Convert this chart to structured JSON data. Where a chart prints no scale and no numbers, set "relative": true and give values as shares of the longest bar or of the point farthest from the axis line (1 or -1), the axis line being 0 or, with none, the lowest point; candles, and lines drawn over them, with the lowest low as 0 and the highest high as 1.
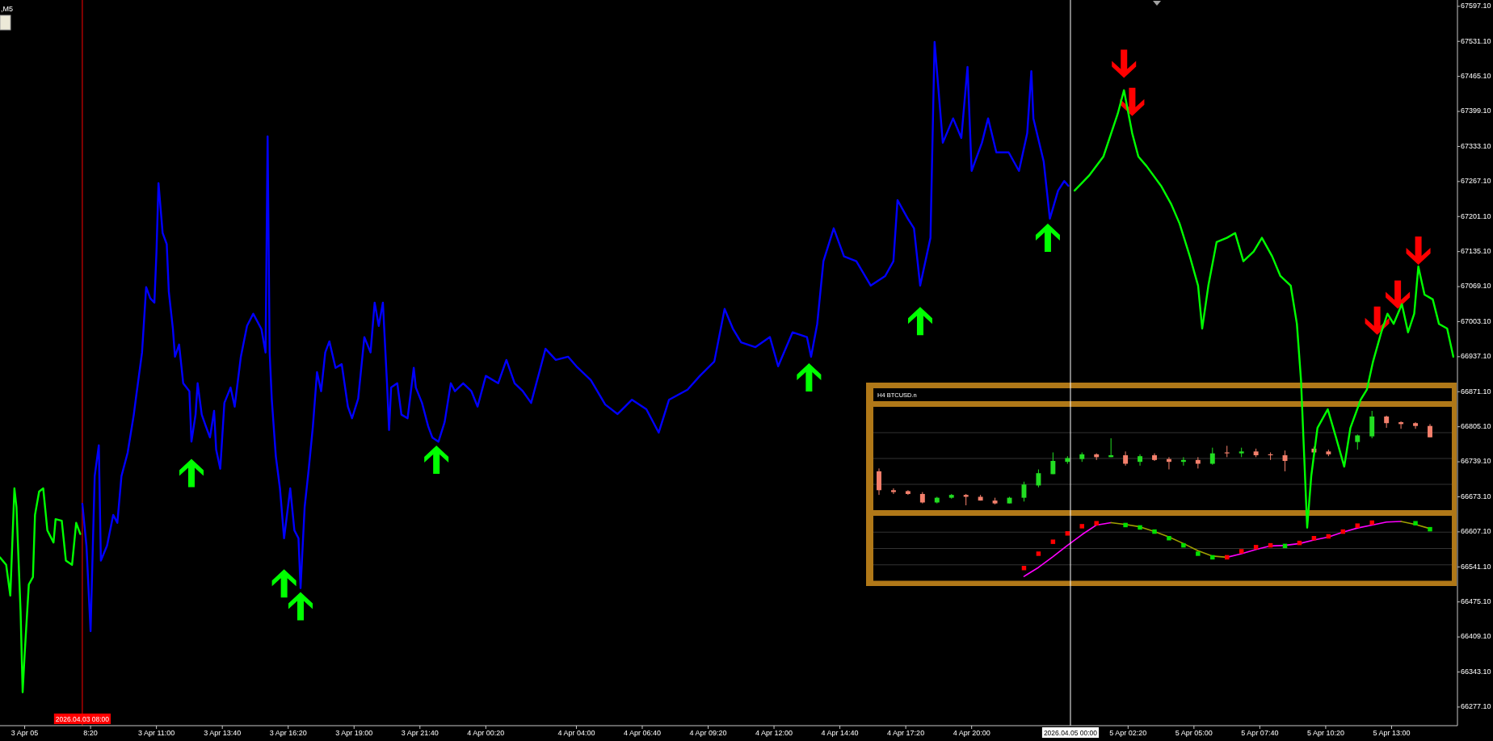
{
  "chart_data": [
    {
      "type": "line",
      "title": ",M5",
      "xlim": [
        "2026-04-03T04:40",
        "2026-04-05T15:40"
      ],
      "ylim": [
        66242,
        67609
      ],
      "xticks": [
        {
          "value": "2026-04-03T05:40",
          "label": "3 Apr 05"
        },
        {
          "value": "2026-04-03T08:20",
          "label": "8:20"
        },
        {
          "value": "2026-04-03T11:00",
          "label": "3 Apr 11:00"
        },
        {
          "value": "2026-04-03T13:40",
          "label": "3 Apr 13:40"
        },
        {
          "value": "2026-04-03T16:20",
          "label": "3 Apr 16:20"
        },
        {
          "value": "2026-04-03T19:00",
          "label": "3 Apr 19:00"
        },
        {
          "value": "2026-04-03T21:40",
          "label": "3 Apr 21:40"
        },
        {
          "value": "2026-04-04T00:20",
          "label": "4 Apr 00:20"
        },
        {
          "value": "2026-04-04T04:00",
          "label": "4 Apr 04:00"
        },
        {
          "value": "2026-04-04T06:40",
          "label": "4 Apr 06:40"
        },
        {
          "value": "2026-04-04T09:20",
          "label": "4 Apr 09:20"
        },
        {
          "value": "2026-04-04T12:00",
          "label": "4 Apr 12:00"
        },
        {
          "value": "2026-04-04T14:40",
          "label": "4 Apr 14:40"
        },
        {
          "value": "2026-04-04T17:20",
          "label": "4 Apr 17:20"
        },
        {
          "value": "2026-04-04T20:00",
          "label": "4 Apr 20:00"
        },
        {
          "value": "2026-04-05T02:20",
          "label": "5 Apr 02:20"
        },
        {
          "value": "2026-04-05T05:00",
          "label": "5 Apr 05:00"
        },
        {
          "value": "2026-04-05T07:40",
          "label": "5 Apr 07:40"
        },
        {
          "value": "2026-04-05T10:20",
          "label": "5 Apr 10:20"
        },
        {
          "value": "2026-04-05T13:00",
          "label": "5 Apr 13:00"
        }
      ],
      "yticks": [
        {
          "value": 66277.1,
          "label": "66277.10"
        },
        {
          "value": 66343.1,
          "label": "66343.10"
        },
        {
          "value": 66409.1,
          "label": "66409.10"
        },
        {
          "value": 66475.1,
          "label": "66475.10"
        },
        {
          "value": 66541.1,
          "label": "66541.10"
        },
        {
          "value": 66607.1,
          "label": "66607.10"
        },
        {
          "value": 66673.1,
          "label": "66673.10"
        },
        {
          "value": 66739.1,
          "label": "66739.10"
        },
        {
          "value": 66805.1,
          "label": "66805.10"
        },
        {
          "value": 66871.1,
          "label": "66871.10"
        },
        {
          "value": 66937.1,
          "label": "66937.10"
        },
        {
          "value": 67003.1,
          "label": "67003.10"
        },
        {
          "value": 67069.1,
          "label": "67069.10"
        },
        {
          "value": 67135.1,
          "label": "67135.10"
        },
        {
          "value": 67201.1,
          "label": "67201.10"
        },
        {
          "value": 67267.1,
          "label": "67267.10"
        },
        {
          "value": 67333.1,
          "label": "67333.10"
        },
        {
          "value": 67399.1,
          "label": "67399.10"
        },
        {
          "value": 67465.1,
          "label": "67465.10"
        },
        {
          "value": 67531.1,
          "label": "67531.10"
        },
        {
          "value": 67597.1,
          "label": "67597.10"
        }
      ],
      "ref_lines": [
        {
          "axis": "x",
          "value": "2026-04-03T08:00",
          "label": "2026.04.03 08:00",
          "color": "#ff0000"
        },
        {
          "axis": "x",
          "value": "2026-04-05T00:00",
          "label": "2026.04.05 00:00",
          "color": "#ffffff"
        }
      ],
      "series": [
        {
          "type": "line",
          "color": "#00ff00",
          "x": [
            "2026-04-03T04:40",
            "2026-04-03T04:55",
            "2026-04-03T05:05",
            "2026-04-03T05:15",
            "2026-04-03T05:20",
            "2026-04-03T05:30",
            "2026-04-03T05:35",
            "2026-04-03T05:40",
            "2026-04-03T05:50",
            "2026-04-03T06:00",
            "2026-04-03T06:05",
            "2026-04-03T06:15",
            "2026-04-03T06:25",
            "2026-04-03T06:35",
            "2026-04-03T06:50",
            "2026-04-03T06:55",
            "2026-04-03T07:10",
            "2026-04-03T07:20",
            "2026-04-03T07:35",
            "2026-04-03T07:45",
            "2026-04-03T07:55",
            "2026-04-04T12:00",
            "2026-04-05T00:10",
            "2026-04-05T00:45",
            "2026-04-05T01:20",
            "2026-04-05T01:55",
            "2026-04-05T02:10",
            "2026-04-05T02:30",
            "2026-04-05T02:45",
            "2026-04-05T03:05",
            "2026-04-05T03:40",
            "2026-04-05T04:05",
            "2026-04-05T04:25",
            "2026-04-05T04:50",
            "2026-04-05T05:10",
            "2026-04-05T05:20",
            "2026-04-05T05:35",
            "2026-04-05T05:55",
            "2026-04-05T06:20",
            "2026-04-05T06:40",
            "2026-04-05T07:00",
            "2026-04-05T07:25",
            "2026-04-05T07:45",
            "2026-04-05T08:10",
            "2026-04-05T08:30",
            "2026-04-05T08:55",
            "2026-04-05T09:10",
            "2026-04-05T09:20",
            "2026-04-05T09:35",
            "2026-04-05T09:45",
            "2026-04-05T10:00",
            "2026-04-05T10:25",
            "2026-04-05T10:45",
            "2026-04-05T11:05",
            "2026-04-05T11:20",
            "2026-04-05T11:45",
            "2026-04-05T12:00",
            "2026-04-05T12:15",
            "2026-04-05T12:35",
            "2026-04-05T12:50",
            "2026-04-05T13:05",
            "2026-04-05T13:25",
            "2026-04-05T13:40",
            "2026-04-05T13:55",
            "2026-04-05T14:05",
            "2026-04-05T14:20",
            "2026-04-05T14:40",
            "2026-04-05T14:55",
            "2026-04-05T15:15",
            "2026-04-05T15:30"
          ],
          "values": [
            66559,
            66545,
            66487,
            66689,
            66654,
            66457,
            66305,
            66378,
            66508,
            66522,
            66639,
            66683,
            66689,
            66610,
            66587,
            66631,
            66628,
            66553,
            66545,
            66624,
            66603,
            null,
            67250,
            67278,
            67314,
            67395,
            67439,
            67358,
            67314,
            67296,
            67259,
            67224,
            67188,
            67126,
            67071,
            66990,
            67071,
            67153,
            67161,
            67170,
            67117,
            67135,
            67161,
            67126,
            67089,
            67071,
            66999,
            66893,
            66615,
            66713,
            66803,
            66838,
            66785,
            66730,
            66803,
            66856,
            66875,
            66928,
            66983,
            67018,
            66999,
            67036,
            66983,
            67018,
            67107,
            67054,
            67045,
            66999,
            66990,
            66937
          ]
        },
        {
          "type": "line",
          "color": "#0000ff",
          "x": [
            "2026-04-03T08:00",
            "2026-04-03T08:10",
            "2026-04-03T08:20",
            "2026-04-03T08:30",
            "2026-04-03T08:40",
            "2026-04-03T08:45",
            "2026-04-03T09:00",
            "2026-04-03T09:15",
            "2026-04-03T09:25",
            "2026-04-03T09:35",
            "2026-04-03T09:50",
            "2026-04-03T10:05",
            "2026-04-03T10:10",
            "2026-04-03T10:25",
            "2026-04-03T10:35",
            "2026-04-03T10:45",
            "2026-04-03T10:55",
            "2026-04-03T11:00",
            "2026-04-03T11:05",
            "2026-04-03T11:15",
            "2026-04-03T11:25",
            "2026-04-03T11:30",
            "2026-04-03T11:40",
            "2026-04-03T11:45",
            "2026-04-03T11:55",
            "2026-04-03T12:05",
            "2026-04-03T12:20",
            "2026-04-03T12:25",
            "2026-04-03T12:35",
            "2026-04-03T12:40",
            "2026-04-03T12:50",
            "2026-04-03T13:00",
            "2026-04-03T13:10",
            "2026-04-03T13:20",
            "2026-04-03T13:25",
            "2026-04-03T13:35",
            "2026-04-03T13:45",
            "2026-04-03T14:00",
            "2026-04-03T14:10",
            "2026-04-03T14:25",
            "2026-04-03T14:40",
            "2026-04-03T14:55",
            "2026-04-03T15:15",
            "2026-04-03T15:25",
            "2026-04-03T15:30",
            "2026-04-03T15:35",
            "2026-04-03T15:40",
            "2026-04-03T15:50",
            "2026-04-03T16:00",
            "2026-04-03T16:10",
            "2026-04-03T16:25",
            "2026-04-03T16:35",
            "2026-04-03T16:45",
            "2026-04-03T16:50",
            "2026-04-03T17:00",
            "2026-04-03T17:10",
            "2026-04-03T17:20",
            "2026-04-03T17:30",
            "2026-04-03T17:40",
            "2026-04-03T17:50",
            "2026-04-03T18:00",
            "2026-04-03T18:15",
            "2026-04-03T18:30",
            "2026-04-03T18:45",
            "2026-04-03T18:55",
            "2026-04-03T19:10",
            "2026-04-03T19:25",
            "2026-04-03T19:40",
            "2026-04-03T19:50",
            "2026-04-03T20:00",
            "2026-04-03T20:10",
            "2026-04-03T20:20",
            "2026-04-03T20:25",
            "2026-04-03T20:30",
            "2026-04-03T20:45",
            "2026-04-03T20:55",
            "2026-04-03T21:10",
            "2026-04-03T21:25",
            "2026-04-03T21:30",
            "2026-04-03T21:45",
            "2026-04-03T22:00",
            "2026-04-03T22:10",
            "2026-04-03T22:25",
            "2026-04-03T22:40",
            "2026-04-03T22:55",
            "2026-04-03T23:05",
            "2026-04-03T23:25",
            "2026-04-03T23:45",
            "2026-04-04T00:00",
            "2026-04-04T00:20",
            "2026-04-04T00:50",
            "2026-04-04T01:10",
            "2026-04-04T01:30",
            "2026-04-04T01:50",
            "2026-04-04T02:10",
            "2026-04-04T02:30",
            "2026-04-04T02:45",
            "2026-04-04T03:10",
            "2026-04-04T03:40",
            "2026-04-04T04:00",
            "2026-04-04T04:35",
            "2026-04-04T05:10",
            "2026-04-04T05:40",
            "2026-04-04T06:15",
            "2026-04-04T06:50",
            "2026-04-04T07:20",
            "2026-04-04T07:45",
            "2026-04-04T08:30",
            "2026-04-04T09:00",
            "2026-04-04T09:35",
            "2026-04-04T10:00",
            "2026-04-04T10:20",
            "2026-04-04T10:40",
            "2026-04-04T11:15",
            "2026-04-04T11:50",
            "2026-04-04T12:10",
            "2026-04-04T12:45",
            "2026-04-04T13:20",
            "2026-04-04T13:30",
            "2026-04-04T13:45",
            "2026-04-04T14:00",
            "2026-04-04T14:25",
            "2026-04-04T14:50",
            "2026-04-04T15:20",
            "2026-04-04T15:55",
            "2026-04-04T16:30",
            "2026-04-04T16:50",
            "2026-04-04T17:00",
            "2026-04-04T17:25",
            "2026-04-04T17:40",
            "2026-04-04T17:55",
            "2026-04-04T18:20",
            "2026-04-04T18:30",
            "2026-04-04T18:50",
            "2026-04-04T19:15",
            "2026-04-04T19:35",
            "2026-04-04T19:50",
            "2026-04-04T20:00",
            "2026-04-04T20:25",
            "2026-04-04T20:40",
            "2026-04-04T21:00",
            "2026-04-04T21:30",
            "2026-04-04T21:55",
            "2026-04-04T22:15",
            "2026-04-04T22:25",
            "2026-04-04T22:30",
            "2026-04-04T22:55",
            "2026-04-04T23:10",
            "2026-04-04T23:30",
            "2026-04-04T23:45",
            "2026-04-04T23:55"
          ],
          "values": [
            66660,
            66581,
            66420,
            66712,
            66770,
            66553,
            66581,
            66639,
            66624,
            66712,
            66756,
            66828,
            66858,
            66945,
            67068,
            67047,
            67039,
            67133,
            67264,
            67170,
            67149,
            67060,
            66989,
            66937,
            66960,
            66887,
            66872,
            66777,
            66828,
            66887,
            66828,
            66806,
            66785,
            66835,
            66762,
            66726,
            66850,
            66879,
            66843,
            66937,
            66995,
            67018,
            66989,
            66945,
            67352,
            66945,
            66858,
            66749,
            66689,
            66595,
            66689,
            66610,
            66595,
            66501,
            66654,
            66726,
            66806,
            66908,
            66872,
            66945,
            66966,
            66916,
            66923,
            66843,
            66821,
            66858,
            66974,
            66945,
            67039,
            66995,
            67039,
            66887,
            66799,
            66879,
            66887,
            66828,
            66821,
            66916,
            66879,
            66850,
            66806,
            66785,
            66777,
            66814,
            66887,
            66872,
            66887,
            66872,
            66843,
            66901,
            66887,
            66931,
            66887,
            66872,
            66850,
            66908,
            66952,
            66931,
            66937,
            66919,
            66893,
            66847,
            66829,
            66856,
            66838,
            66794,
            66856,
            66875,
            66901,
            66928,
            67027,
            66990,
            66964,
            66955,
            66974,
            66919,
            66983,
            66974,
            66937,
            66999,
            67117,
            67179,
            67126,
            67117,
            67071,
            67089,
            67117,
            67232,
            67197,
            67179,
            67071,
            67161,
            67530,
            67340,
            67386,
            67349,
            67483,
            67287,
            67340,
            67386,
            67322,
            67322,
            67287,
            67358,
            67475,
            67386,
            67305,
            67197,
            67250,
            67268,
            67259
          ]
        },
        {
          "type": "scatter",
          "color": "#00ff00",
          "x": [
            "2026-04-03T12:25",
            "2026-04-03T16:10",
            "2026-04-03T16:50",
            "2026-04-03T22:20",
            "2026-04-04T13:25",
            "2026-04-04T17:55",
            "2026-04-04T23:05"
          ],
          "values": [
            66718,
            66510,
            66467,
            66743,
            66898,
            67004,
            67161
          ]
        },
        {
          "type": "scatter",
          "color": "#ff0000",
          "x": [
            "2026-04-05T02:10",
            "2026-04-05T02:30",
            "2026-04-05T12:25",
            "2026-04-05T13:15",
            "2026-04-05T14:05"
          ],
          "values": [
            67489,
            67417,
            67005,
            67054,
            67137
          ]
        }
      ]
    },
    {
      "type": "candlestick",
      "title": "H4 BTCUSD.n",
      "relative": true,
      "grid": true,
      "categories": [
        null,
        null,
        null,
        null,
        null,
        null,
        null,
        null,
        null,
        null,
        null,
        null,
        null,
        null,
        null,
        null,
        null,
        null,
        null,
        null,
        null,
        null,
        null,
        null,
        null,
        null,
        null,
        null,
        null,
        null,
        null,
        null,
        null,
        null,
        null,
        null,
        null,
        null,
        null
      ],
      "ohlc": [
        [
          0.36,
          0.39,
          0.11,
          0.16
        ],
        [
          0.16,
          0.18,
          0.12,
          0.14
        ],
        [
          0.15,
          0.16,
          0.11,
          0.12
        ],
        [
          0.12,
          0.14,
          0.02,
          0.03
        ],
        [
          0.03,
          0.09,
          0.02,
          0.08
        ],
        [
          0.08,
          0.12,
          0.07,
          0.11
        ],
        [
          0.11,
          0.12,
          0,
          0.09
        ],
        [
          0.09,
          0.11,
          0.05,
          0.05
        ],
        [
          0.05,
          0.08,
          0.01,
          0.02
        ],
        [
          0.02,
          0.09,
          0.02,
          0.08
        ],
        [
          0.08,
          0.25,
          0.04,
          0.22
        ],
        [
          0.21,
          0.38,
          0.19,
          0.34
        ],
        [
          0.33,
          0.56,
          0.33,
          0.47
        ],
        [
          0.46,
          0.52,
          0.44,
          0.5
        ],
        [
          0.49,
          0.56,
          0.46,
          0.54
        ],
        [
          0.54,
          0.55,
          0.48,
          0.51
        ],
        [
          0.51,
          0.71,
          0.51,
          0.53
        ],
        [
          0.53,
          0.57,
          0.42,
          0.44
        ],
        [
          0.46,
          0.54,
          0.42,
          0.52
        ],
        [
          0.53,
          0.55,
          0.47,
          0.48
        ],
        [
          0.49,
          0.51,
          0.38,
          0.46
        ],
        [
          0.46,
          0.51,
          0.42,
          0.48
        ],
        [
          0.48,
          0.51,
          0.39,
          0.44
        ],
        [
          0.44,
          0.61,
          0.43,
          0.55
        ],
        [
          0.56,
          0.63,
          0.51,
          0.55
        ],
        [
          0.55,
          0.61,
          0.51,
          0.57
        ],
        [
          0.57,
          0.6,
          0.51,
          0.53
        ],
        [
          0.54,
          0.56,
          0.48,
          0.53
        ],
        [
          0.53,
          0.58,
          0.36,
          0.47
        ],
        null,
        [
          0.6,
          0.62,
          0.55,
          0.56
        ],
        [
          0.57,
          0.59,
          0.52,
          0.54
        ],
        null,
        [
          0.67,
          0.75,
          0.59,
          0.74
        ],
        [
          0.73,
          1,
          0.71,
          0.94
        ],
        [
          0.94,
          0.95,
          0.82,
          0.87
        ],
        [
          0.88,
          0.89,
          0.81,
          0.86
        ],
        [
          0.87,
          0.88,
          0.81,
          0.84
        ],
        [
          0.84,
          0.86,
          0.72,
          0.72
        ]
      ],
      "colors": [
        "#f4806c",
        "#f4806c",
        "#f4806c",
        "#f4806c",
        "#22dd22",
        "#22dd22",
        "#f4806c",
        "#f4806c",
        "#f4806c",
        "#22dd22",
        "#22dd22",
        "#22dd22",
        "#22dd22",
        "#22dd22",
        "#22dd22",
        "#f4806c",
        "#22dd22",
        "#f4806c",
        "#22dd22",
        "#f4806c",
        "#f4806c",
        "#22dd22",
        "#f4806c",
        "#22dd22",
        "#f4806c",
        "#22dd22",
        "#f4806c",
        "#f4806c",
        "#f4806c",
        null,
        "#f4806c",
        "#f4806c",
        null,
        "#22dd22",
        "#22dd22",
        "#f4806c",
        "#f4806c",
        "#f4806c",
        "#f4806c"
      ]
    },
    {
      "type": "line",
      "relative": true,
      "grid": true,
      "categories": [
        null,
        null,
        null,
        null,
        null,
        null,
        null,
        null,
        null,
        null,
        null,
        null,
        null,
        null,
        null,
        null,
        null,
        null,
        null,
        null,
        null,
        null,
        null,
        null,
        null,
        null,
        null,
        null,
        null,
        null,
        null,
        null,
        null,
        null,
        null,
        null,
        null,
        null,
        null
      ],
      "series": [
        {
          "type": "line",
          "color": "#ff00ff",
          "values": [
            null,
            null,
            null,
            null,
            null,
            null,
            null,
            null,
            null,
            null,
            0.08,
            0.23,
            0.41,
            0.6,
            0.78,
            0.94,
            0.98,
            null,
            null,
            null,
            null,
            null,
            null,
            null,
            0.4,
            0.46,
            0.53,
            0.59,
            0.6,
            0.63,
            0.69,
            0.74,
            0.82,
            0.89,
            0.94,
            0.99,
            1,
            null,
            null
          ]
        },
        {
          "type": "line",
          "color": "#a0a000",
          "values": [
            null,
            null,
            null,
            null,
            null,
            null,
            null,
            null,
            null,
            null,
            null,
            null,
            null,
            null,
            null,
            null,
            0.98,
            0.95,
            0.91,
            0.83,
            0.74,
            0.63,
            0.51,
            0.42,
            0.4,
            null,
            null,
            null,
            null,
            null,
            null,
            null,
            null,
            null,
            null,
            null,
            1,
            0.95,
            0.88
          ]
        },
        {
          "type": "scatter",
          "marker": "square",
          "values": [
            null,
            null,
            null,
            null,
            null,
            null,
            null,
            null,
            null,
            null,
            0.22,
            0.46,
            0.66,
            0.8,
            0.92,
            0.97,
            null,
            0.94,
            0.9,
            0.83,
            0.72,
            0.6,
            0.46,
            0.4,
            0.4,
            0.5,
            0.57,
            0.6,
            0.59,
            0.64,
            0.72,
            0.75,
            0.83,
            0.93,
            0.98,
            null,
            null,
            0.97,
            0.87
          ],
          "colors": [
            null,
            null,
            null,
            null,
            null,
            null,
            null,
            null,
            null,
            null,
            "#ff0000",
            "#ff0000",
            "#ff0000",
            "#ff0000",
            "#ff0000",
            "#ff0000",
            null,
            "#00e000",
            "#00e000",
            "#00e000",
            "#00e000",
            "#00e000",
            "#00e000",
            "#00e000",
            "#ff0000",
            "#ff0000",
            "#ff0000",
            "#ff0000",
            "#00e000",
            "#ff0000",
            "#ff0000",
            "#ff0000",
            "#ff0000",
            "#ff0000",
            "#ff0000",
            null,
            null,
            "#00e000",
            "#00e000"
          ]
        }
      ]
    }
  ]
}
